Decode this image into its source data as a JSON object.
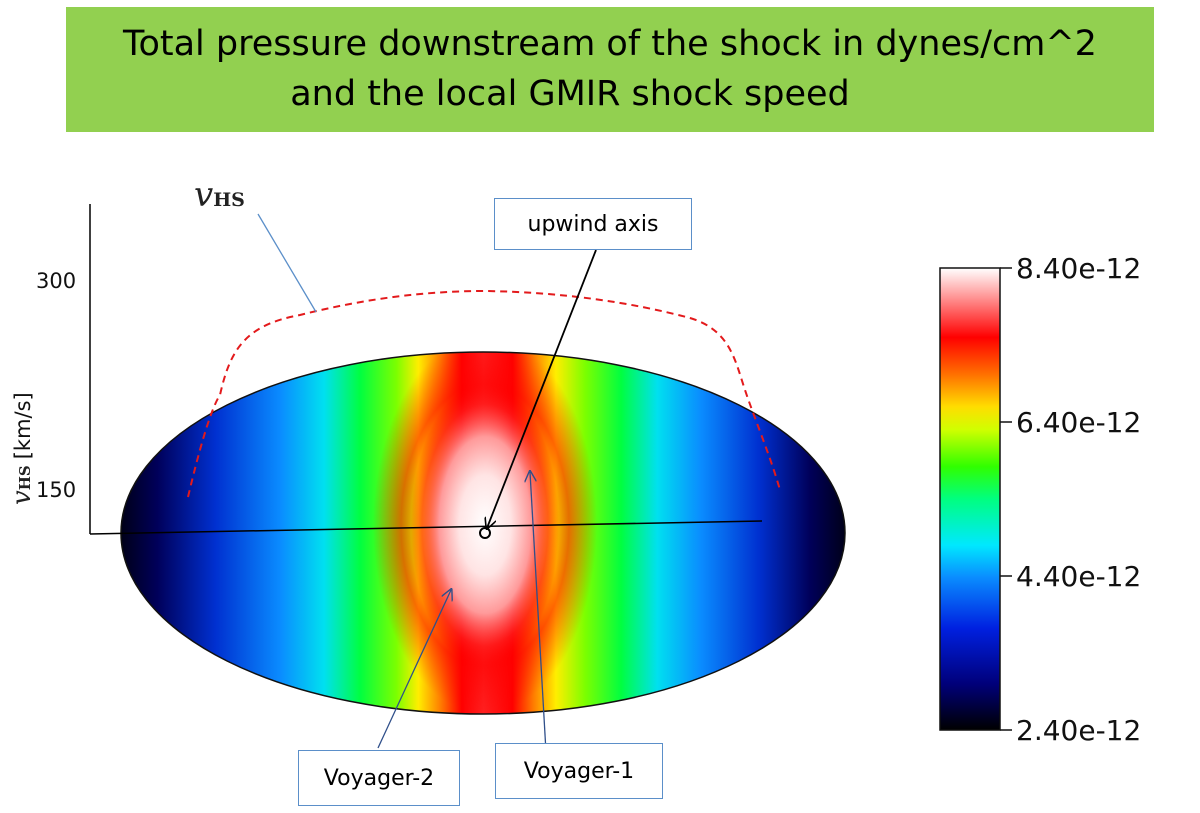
{
  "title": {
    "line1": "Total pressure downstream of the shock in dynes/cm^2",
    "line2": "and the local GMIR shock speed"
  },
  "speed_axis": {
    "label_symbol": "v",
    "label_subscript": "HS",
    "label_unit": "[km/s]",
    "ticks": [
      "300",
      "150"
    ]
  },
  "curve_label": {
    "symbol": "v",
    "subscript": "HS"
  },
  "colorbar": {
    "ticks": [
      "8.40e-12",
      "6.40e-12",
      "4.40e-12",
      "2.40e-12"
    ],
    "stops": [
      "#000000",
      "#0000c8",
      "#00a0ff",
      "#00ffff",
      "#00ff00",
      "#ffff00",
      "#ff8000",
      "#ff0000",
      "#ffffff"
    ]
  },
  "callouts": {
    "upwind": "upwind axis",
    "voyager2": "Voyager-2",
    "voyager1": "Voyager-1"
  },
  "colors": {
    "title_bg": "#92d050",
    "curve": "#e31a1c",
    "callout_border": "#5b8fc9"
  }
}
